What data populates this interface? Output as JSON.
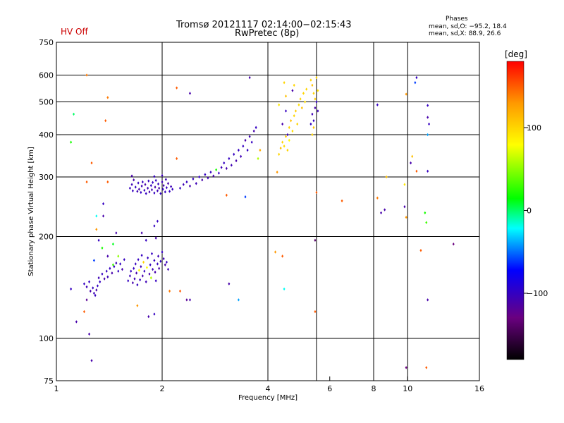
{
  "header": {
    "title": "Tromsø 20121117 02:14:00−02:15:43",
    "subtitle": "RwPretec (8p)",
    "hv_status": "HV Off",
    "hv_color": "#cc0000"
  },
  "phases_box": {
    "title": "Phases",
    "line1": "mean, sd,O: −95.2, 18.4",
    "line2": "mean, sd,X:  88.9, 26.6"
  },
  "colorbar": {
    "unit": "[deg]",
    "range": [
      -180,
      180
    ],
    "ticks": [
      {
        "v": 100,
        "label": "100"
      },
      {
        "v": 0,
        "label": "0"
      },
      {
        "v": -100,
        "label": "−100"
      }
    ]
  },
  "chart_data": {
    "type": "scatter",
    "xlabel": "Frequency [MHz]",
    "ylabel": "Stationary phase Virtual Height [km]",
    "xscale": "log",
    "yscale": "log",
    "xlim": [
      1,
      16
    ],
    "ylim": [
      75,
      750
    ],
    "xticks": [
      {
        "v": 1,
        "label": "1"
      },
      {
        "v": 2,
        "label": "2"
      },
      {
        "v": 4,
        "label": "4"
      },
      {
        "v": 6,
        "label": "6"
      },
      {
        "v": 8,
        "label": "8"
      },
      {
        "v": 10,
        "label": "10"
      },
      {
        "v": 16,
        "label": "16"
      }
    ],
    "yticks": [
      {
        "v": 75,
        "label": "75"
      },
      {
        "v": 100,
        "label": "100"
      },
      {
        "v": 200,
        "label": "200"
      },
      {
        "v": 300,
        "label": "300"
      },
      {
        "v": 400,
        "label": "400"
      },
      {
        "v": 500,
        "label": "500"
      },
      {
        "v": 600,
        "label": "600"
      },
      {
        "v": 750,
        "label": "750"
      }
    ],
    "xgrid": [
      2,
      4,
      5.5,
      8,
      10
    ],
    "ygrid": [
      100,
      200,
      300,
      400,
      500,
      600
    ],
    "grid": true,
    "points": [
      [
        1.12,
        460,
        0
      ],
      [
        1.1,
        380,
        20
      ],
      [
        1.22,
        600,
        140
      ],
      [
        1.26,
        330,
        150
      ],
      [
        1.22,
        290,
        150
      ],
      [
        1.3,
        230,
        -20
      ],
      [
        1.36,
        250,
        -100
      ],
      [
        1.36,
        230,
        -110
      ],
      [
        1.32,
        195,
        -100
      ],
      [
        1.3,
        210,
        130
      ],
      [
        1.35,
        185,
        20
      ],
      [
        1.4,
        175,
        -110
      ],
      [
        1.45,
        190,
        10
      ],
      [
        1.5,
        175,
        50
      ],
      [
        1.48,
        205,
        -110
      ],
      [
        1.4,
        515,
        140
      ],
      [
        1.38,
        440,
        150
      ],
      [
        1.4,
        290,
        150
      ],
      [
        1.1,
        140,
        -100
      ],
      [
        1.14,
        112,
        -110
      ],
      [
        1.2,
        120,
        150
      ],
      [
        1.24,
        103,
        -110
      ],
      [
        1.26,
        86,
        -110
      ],
      [
        1.28,
        170,
        -60
      ],
      [
        1.45,
        165,
        30
      ],
      [
        1.22,
        130,
        -120
      ],
      [
        1.2,
        145,
        -100
      ],
      [
        1.22,
        142,
        -105
      ],
      [
        1.24,
        147,
        -100
      ],
      [
        1.25,
        138,
        -110
      ],
      [
        1.27,
        141,
        -100
      ],
      [
        1.28,
        136,
        -105
      ],
      [
        1.29,
        134,
        -100
      ],
      [
        1.3,
        139,
        -110
      ],
      [
        1.31,
        143,
        -100
      ],
      [
        1.32,
        151,
        -105
      ],
      [
        1.33,
        147,
        -100
      ],
      [
        1.35,
        155,
        -100
      ],
      [
        1.37,
        150,
        -110
      ],
      [
        1.39,
        158,
        -100
      ],
      [
        1.4,
        152,
        -105
      ],
      [
        1.42,
        161,
        -100
      ],
      [
        1.44,
        156,
        -110
      ],
      [
        1.46,
        163,
        -100
      ],
      [
        1.48,
        167,
        -105
      ],
      [
        1.5,
        158,
        -100
      ],
      [
        1.52,
        166,
        -100
      ],
      [
        1.54,
        160,
        -110
      ],
      [
        1.56,
        171,
        -100
      ],
      [
        1.6,
        148,
        -100
      ],
      [
        1.62,
        153,
        -105
      ],
      [
        1.63,
        158,
        -100
      ],
      [
        1.65,
        146,
        -110
      ],
      [
        1.66,
        161,
        -100
      ],
      [
        1.67,
        150,
        -105
      ],
      [
        1.68,
        166,
        -100
      ],
      [
        1.69,
        156,
        -110
      ],
      [
        1.7,
        144,
        -100
      ],
      [
        1.71,
        171,
        -100
      ],
      [
        1.72,
        159,
        80
      ],
      [
        1.73,
        149,
        -100
      ],
      [
        1.74,
        163,
        -105
      ],
      [
        1.75,
        176,
        -100
      ],
      [
        1.76,
        153,
        -110
      ],
      [
        1.77,
        168,
        100
      ],
      [
        1.78,
        158,
        -100
      ],
      [
        1.8,
        147,
        -105
      ],
      [
        1.81,
        162,
        80
      ],
      [
        1.82,
        173,
        -100
      ],
      [
        1.84,
        155,
        -110
      ],
      [
        1.85,
        165,
        -100
      ],
      [
        1.86,
        151,
        60
      ],
      [
        1.87,
        178,
        -100
      ],
      [
        1.88,
        160,
        -105
      ],
      [
        1.9,
        170,
        -100
      ],
      [
        1.91,
        157,
        -110
      ],
      [
        1.92,
        148,
        -100
      ],
      [
        1.94,
        166,
        -100
      ],
      [
        1.95,
        175,
        -105
      ],
      [
        1.96,
        161,
        -110
      ],
      [
        1.98,
        169,
        -100
      ],
      [
        2.0,
        180,
        -100
      ],
      [
        2.02,
        172,
        -105
      ],
      [
        2.04,
        165,
        -110
      ],
      [
        2.06,
        168,
        -100
      ],
      [
        2.08,
        160,
        -105
      ],
      [
        1.75,
        205,
        -110
      ],
      [
        1.8,
        195,
        -100
      ],
      [
        1.9,
        215,
        -100
      ],
      [
        1.92,
        198,
        -110
      ],
      [
        1.94,
        222,
        -100
      ],
      [
        1.83,
        116,
        -110
      ],
      [
        1.9,
        118,
        -100
      ],
      [
        1.7,
        125,
        130
      ],
      [
        2.1,
        138,
        140
      ],
      [
        2.25,
        138,
        150
      ],
      [
        2.4,
        130,
        -110
      ],
      [
        2.35,
        130,
        -120
      ],
      [
        1.62,
        278,
        -100
      ],
      [
        1.64,
        285,
        -105
      ],
      [
        1.65,
        273,
        -100
      ],
      [
        1.66,
        294,
        -110
      ],
      [
        1.68,
        280,
        -100
      ],
      [
        1.7,
        272,
        -105
      ],
      [
        1.71,
        288,
        -100
      ],
      [
        1.72,
        276,
        -110
      ],
      [
        1.74,
        270,
        -100
      ],
      [
        1.75,
        282,
        -105
      ],
      [
        1.76,
        290,
        -100
      ],
      [
        1.78,
        274,
        -100
      ],
      [
        1.79,
        285,
        -110
      ],
      [
        1.8,
        268,
        -100
      ],
      [
        1.82,
        278,
        -105
      ],
      [
        1.83,
        292,
        -100
      ],
      [
        1.84,
        271,
        -110
      ],
      [
        1.86,
        283,
        -100
      ],
      [
        1.87,
        275,
        -105
      ],
      [
        1.88,
        289,
        -100
      ],
      [
        1.9,
        269,
        -100
      ],
      [
        1.91,
        280,
        -110
      ],
      [
        1.92,
        293,
        -100
      ],
      [
        1.94,
        273,
        -105
      ],
      [
        1.95,
        286,
        -100
      ],
      [
        1.96,
        278,
        -110
      ],
      [
        1.98,
        268,
        -100
      ],
      [
        2.0,
        290,
        -105
      ],
      [
        2.01,
        276,
        -100
      ],
      [
        2.02,
        283,
        -110
      ],
      [
        2.04,
        271,
        -100
      ],
      [
        2.05,
        295,
        -105
      ],
      [
        2.06,
        279,
        -100
      ],
      [
        2.08,
        287,
        -110
      ],
      [
        2.1,
        272,
        -100
      ],
      [
        2.12,
        281,
        -105
      ],
      [
        2.14,
        276,
        -100
      ],
      [
        1.64,
        302,
        -110
      ],
      [
        1.9,
        301,
        -100
      ],
      [
        2.0,
        303,
        -105
      ],
      [
        2.25,
        278,
        -100
      ],
      [
        2.3,
        285,
        -105
      ],
      [
        2.35,
        290,
        -100
      ],
      [
        2.4,
        282,
        -110
      ],
      [
        2.45,
        296,
        -100
      ],
      [
        2.5,
        287,
        -105
      ],
      [
        2.55,
        300,
        -100
      ],
      [
        2.6,
        294,
        -110
      ],
      [
        2.65,
        305,
        -100
      ],
      [
        2.7,
        298,
        -105
      ],
      [
        2.75,
        310,
        -100
      ],
      [
        2.8,
        302,
        -110
      ],
      [
        2.85,
        315,
        20
      ],
      [
        2.9,
        308,
        -100
      ],
      [
        2.95,
        320,
        -105
      ],
      [
        3.0,
        330,
        -100
      ],
      [
        3.05,
        318,
        -110
      ],
      [
        3.1,
        340,
        -100
      ],
      [
        3.15,
        325,
        -105
      ],
      [
        3.2,
        350,
        -100
      ],
      [
        3.25,
        335,
        -110
      ],
      [
        3.3,
        360,
        -100
      ],
      [
        3.35,
        345,
        -105
      ],
      [
        3.4,
        370,
        -100
      ],
      [
        3.45,
        385,
        -110
      ],
      [
        3.5,
        360,
        -100
      ],
      [
        3.55,
        395,
        -105
      ],
      [
        3.6,
        380,
        -100
      ],
      [
        3.65,
        410,
        -110
      ],
      [
        3.7,
        420,
        -100
      ],
      [
        3.75,
        340,
        60
      ],
      [
        3.8,
        360,
        120
      ],
      [
        2.2,
        340,
        150
      ],
      [
        2.4,
        530,
        -110
      ],
      [
        2.2,
        550,
        150
      ],
      [
        3.05,
        265,
        150
      ],
      [
        3.45,
        262,
        -60
      ],
      [
        3.55,
        590,
        -110
      ],
      [
        3.1,
        145,
        -110
      ],
      [
        3.3,
        130,
        -40
      ],
      [
        4.3,
        350,
        100
      ],
      [
        4.35,
        365,
        110
      ],
      [
        4.4,
        380,
        100
      ],
      [
        4.45,
        370,
        95
      ],
      [
        4.5,
        395,
        105
      ],
      [
        4.55,
        360,
        100
      ],
      [
        4.6,
        420,
        100
      ],
      [
        4.65,
        440,
        110
      ],
      [
        4.7,
        410,
        95
      ],
      [
        4.75,
        455,
        100
      ],
      [
        4.8,
        470,
        105
      ],
      [
        4.85,
        430,
        100
      ],
      [
        4.9,
        490,
        95
      ],
      [
        4.95,
        510,
        100
      ],
      [
        5.0,
        480,
        110
      ],
      [
        5.05,
        530,
        100
      ],
      [
        5.1,
        500,
        95
      ],
      [
        5.15,
        545,
        100
      ],
      [
        4.4,
        430,
        -110
      ],
      [
        4.5,
        470,
        -100
      ],
      [
        4.55,
        400,
        -105
      ],
      [
        4.6,
        385,
        80
      ],
      [
        4.7,
        540,
        -110
      ],
      [
        4.75,
        560,
        100
      ],
      [
        4.5,
        520,
        110
      ],
      [
        4.45,
        570,
        100
      ],
      [
        4.3,
        490,
        90
      ],
      [
        5.3,
        430,
        -100
      ],
      [
        5.35,
        460,
        -105
      ],
      [
        5.4,
        440,
        -100
      ],
      [
        5.45,
        480,
        -110
      ],
      [
        5.5,
        500,
        -100
      ],
      [
        5.55,
        470,
        -105
      ],
      [
        5.35,
        400,
        100
      ],
      [
        5.4,
        420,
        110
      ],
      [
        5.3,
        580,
        100
      ],
      [
        5.35,
        560,
        110
      ],
      [
        5.4,
        530,
        100
      ],
      [
        5.45,
        510,
        105
      ],
      [
        5.5,
        590,
        100
      ],
      [
        5.55,
        540,
        95
      ],
      [
        5.5,
        270,
        150
      ],
      [
        5.45,
        195,
        -140
      ],
      [
        5.45,
        120,
        150
      ],
      [
        4.2,
        180,
        130
      ],
      [
        4.4,
        175,
        150
      ],
      [
        4.45,
        140,
        -20
      ],
      [
        4.25,
        310,
        130
      ],
      [
        6.5,
        255,
        150
      ],
      [
        8.2,
        490,
        -100
      ],
      [
        8.2,
        260,
        140
      ],
      [
        8.4,
        235,
        -110
      ],
      [
        8.6,
        240,
        -110
      ],
      [
        8.7,
        300,
        110
      ],
      [
        9.8,
        245,
        -110
      ],
      [
        9.8,
        285,
        90
      ],
      [
        9.9,
        527,
        130
      ],
      [
        9.9,
        228,
        130
      ],
      [
        10.2,
        330,
        -110
      ],
      [
        10.3,
        345,
        110
      ],
      [
        10.6,
        590,
        -100
      ],
      [
        10.5,
        570,
        -60
      ],
      [
        10.6,
        312,
        150
      ],
      [
        10.9,
        182,
        150
      ],
      [
        11.4,
        130,
        -110
      ],
      [
        11.4,
        400,
        -40
      ],
      [
        11.4,
        450,
        -110
      ],
      [
        11.4,
        488,
        -100
      ],
      [
        11.5,
        430,
        -100
      ],
      [
        11.4,
        312,
        -100
      ],
      [
        11.2,
        235,
        20
      ],
      [
        11.3,
        220,
        30
      ],
      [
        11.3,
        82,
        150
      ],
      [
        9.9,
        82,
        -130
      ],
      [
        13.5,
        190,
        -130
      ]
    ]
  }
}
